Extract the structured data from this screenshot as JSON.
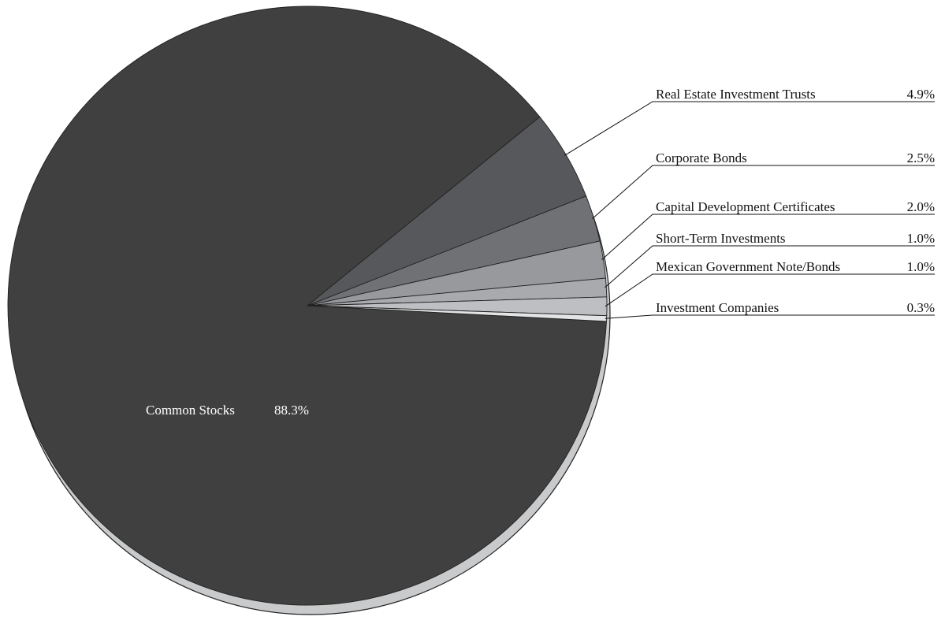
{
  "chart_data": {
    "type": "pie",
    "title": "",
    "legend": "none",
    "slices": [
      {
        "label": "Common Stocks",
        "value": 88.3,
        "display": "88.3%",
        "color": "#404040",
        "label_placement": "inside"
      },
      {
        "label": "Real Estate Investment Trusts",
        "value": 4.9,
        "display": "4.9%",
        "color": "#56585b",
        "label_placement": "outside"
      },
      {
        "label": "Corporate Bonds",
        "value": 2.5,
        "display": "2.5%",
        "color": "#6f7174",
        "label_placement": "outside"
      },
      {
        "label": "Capital Development Certificates",
        "value": 2.0,
        "display": "2.0%",
        "color": "#97999c",
        "label_placement": "outside"
      },
      {
        "label": "Short-Term Investments",
        "value": 1.0,
        "display": "1.0%",
        "color": "#a8aaad",
        "label_placement": "outside"
      },
      {
        "label": "Mexican Government Note/Bonds",
        "value": 1.0,
        "display": "1.0%",
        "color": "#bdbfc2",
        "label_placement": "outside"
      },
      {
        "label": "Investment Companies",
        "value": 0.3,
        "display": "0.3%",
        "color": "#e3e4e6",
        "label_placement": "outside"
      }
    ],
    "edge_color": "#c9cacc",
    "outline_color": "#222222"
  }
}
